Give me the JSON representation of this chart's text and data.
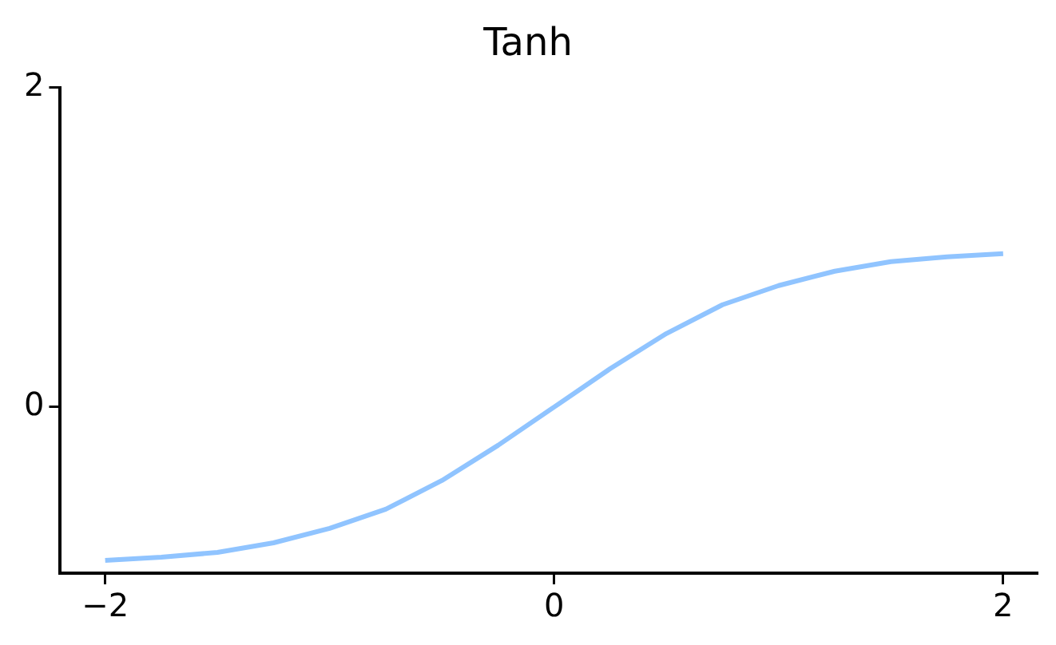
{
  "chart_data": {
    "type": "line",
    "title": "Tanh",
    "x": [
      -2,
      -1.75,
      -1.5,
      -1.25,
      -1,
      -0.75,
      -0.5,
      -0.25,
      0,
      0.25,
      0.5,
      0.75,
      1,
      1.25,
      1.5,
      1.75,
      2
    ],
    "series": [
      {
        "color": "#90c4ff",
        "values": [
          -0.96,
          -0.94,
          -0.91,
          -0.85,
          -0.76,
          -0.64,
          -0.46,
          -0.24,
          0,
          0.24,
          0.46,
          0.64,
          0.76,
          0.85,
          0.91,
          0.94,
          0.96
        ]
      }
    ],
    "xlim": [
      -2.2,
      2.15
    ],
    "xticks": [
      {
        "value": -2,
        "label": "−2"
      },
      0,
      2
    ],
    "ylim": [
      -1.04,
      2
    ],
    "yticks": [
      0,
      2
    ]
  }
}
